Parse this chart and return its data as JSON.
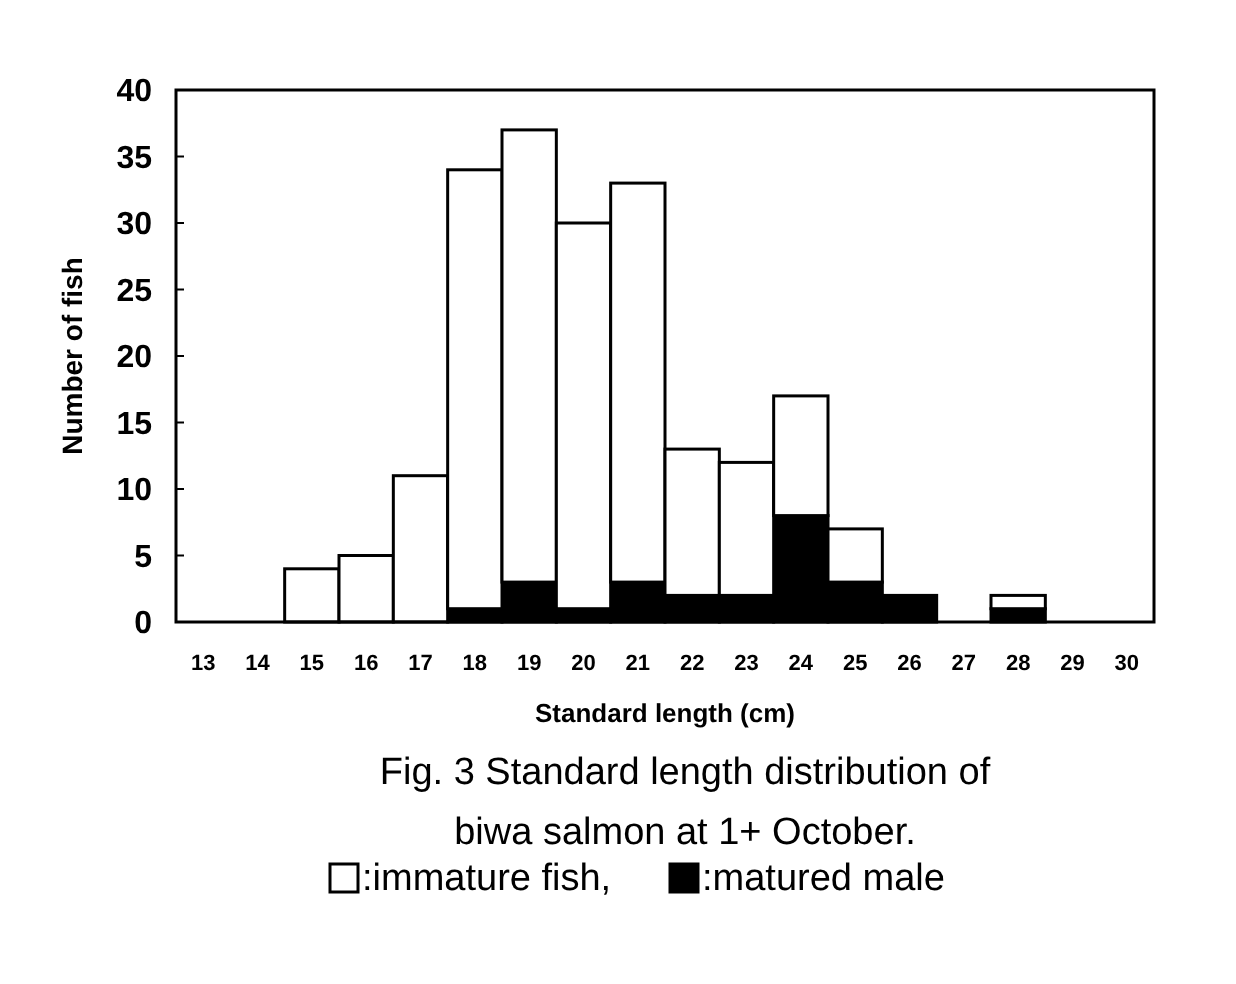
{
  "chart_data": {
    "type": "bar",
    "stacked": true,
    "title": "Fig. 3  Standard length distribution of biwa salmon at 1+ October.",
    "xlabel": "Standard length (cm)",
    "ylabel": "Number of fish",
    "categories": [
      "13",
      "14",
      "15",
      "16",
      "17",
      "18",
      "19",
      "20",
      "21",
      "22",
      "23",
      "24",
      "25",
      "26",
      "27",
      "28",
      "29",
      "30"
    ],
    "series": [
      {
        "name": ":matured male",
        "color": "#000000",
        "values": [
          0,
          0,
          0,
          0,
          0,
          1,
          3,
          1,
          3,
          2,
          2,
          8,
          3,
          2,
          0,
          1,
          0,
          0
        ]
      },
      {
        "name": ":immature fish,",
        "color": "#ffffff",
        "values": [
          0,
          0,
          4,
          5,
          11,
          33,
          34,
          29,
          30,
          11,
          10,
          9,
          4,
          0,
          0,
          1,
          0,
          0
        ]
      }
    ],
    "ylim": [
      0,
      40
    ],
    "yticks": [
      0,
      5,
      10,
      15,
      20,
      25,
      30,
      35,
      40
    ],
    "legend": "bottom",
    "grid": false
  }
}
